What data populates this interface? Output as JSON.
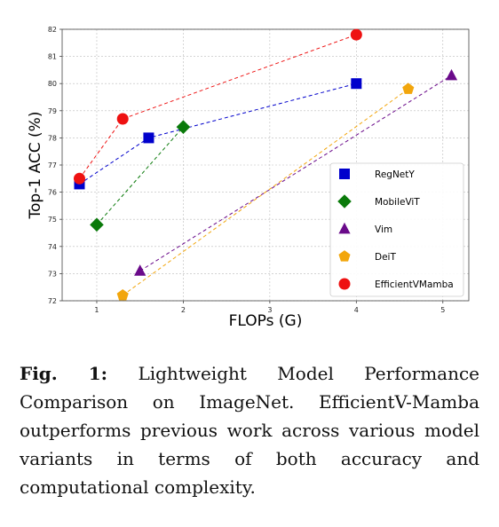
{
  "chart_data": {
    "type": "line",
    "xlabel": "FLOPs (G)",
    "ylabel": "Top-1 ACC (%)",
    "xlim": [
      0.6,
      5.3
    ],
    "ylim": [
      72,
      82
    ],
    "x_ticks": [
      1,
      2,
      3,
      4,
      5
    ],
    "y_ticks": [
      72,
      73,
      74,
      75,
      76,
      77,
      78,
      79,
      80,
      81,
      82
    ],
    "grid": true,
    "legend_position": "bottom-right",
    "series": [
      {
        "name": "RegNetY",
        "color": "#0000cc",
        "marker": "square",
        "x": [
          0.8,
          1.6,
          4.0
        ],
        "y": [
          76.3,
          78.0,
          80.0
        ]
      },
      {
        "name": "MobileViT",
        "color": "#0a7a0a",
        "marker": "diamond",
        "x": [
          1.0,
          2.0
        ],
        "y": [
          74.8,
          78.4
        ]
      },
      {
        "name": "Vim",
        "color": "#6a0a8a",
        "marker": "triangle",
        "x": [
          1.5,
          5.1
        ],
        "y": [
          73.1,
          80.3
        ]
      },
      {
        "name": "DeiT",
        "color": "#f2a60c",
        "marker": "pentagon",
        "x": [
          1.3,
          4.6
        ],
        "y": [
          72.2,
          79.8
        ]
      },
      {
        "name": "EfficientVMamba",
        "color": "#ee1111",
        "marker": "circle",
        "x": [
          0.8,
          1.3,
          4.0
        ],
        "y": [
          76.5,
          78.7,
          81.8
        ]
      }
    ]
  },
  "caption": {
    "label": "Fig. 1:",
    "text": "Lightweight Model Performance Comparison on ImageNet. EfficientV-Mamba outperforms previous work across various model variants in terms of both accuracy and computational complexity."
  }
}
